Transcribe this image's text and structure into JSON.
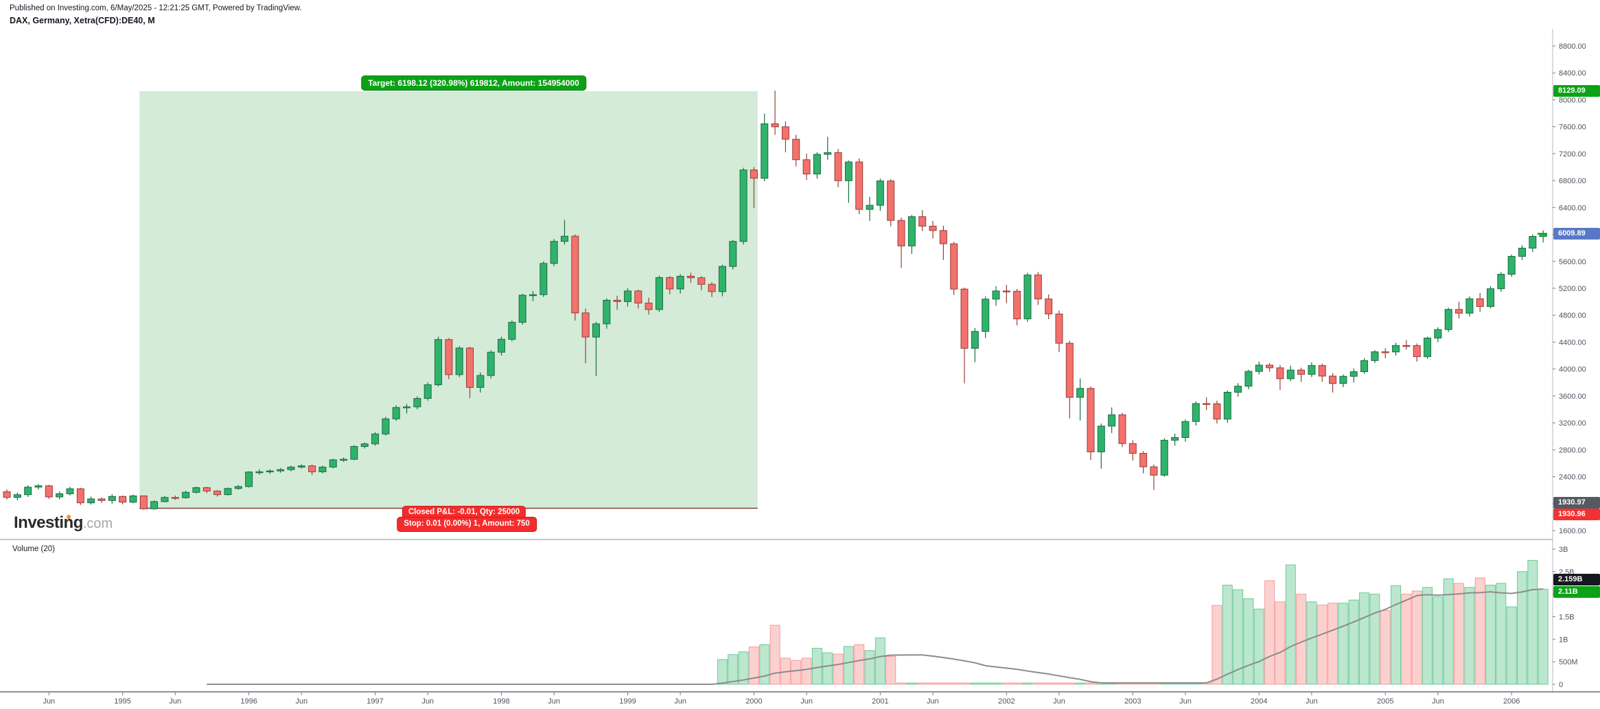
{
  "header": {
    "published_line": "Published on Investing.com, 6/May/2025 - 12:21:25 GMT, Powered by TradingView.",
    "symbol_line": "DAX, Germany, Xetra(CFD):DE40, M"
  },
  "position_tool": {
    "target_label": "Target: 6198.12 (320.98%) 619812, Amount: 154954000",
    "closed_pnl_label": "Closed P&L:  -0.01, Qty: 25000",
    "stop_label": "Stop: 0.01 (0.00%) 1, Amount: 750",
    "entry_price": 1930.97,
    "stop_price": 1930.96,
    "target_price": 8129.09,
    "range_start_index": 13,
    "range_end_index": 72
  },
  "price_axis": {
    "ticks": [
      "8800.00",
      "8400.00",
      "8000.00",
      "7600.00",
      "7200.00",
      "6800.00",
      "6400.00",
      "6000.00",
      "5600.00",
      "5200.00",
      "4800.00",
      "4400.00",
      "4000.00",
      "3600.00",
      "3200.00",
      "2800.00",
      "2400.00",
      "2000.00",
      "1600.00"
    ],
    "badges": [
      {
        "id": "target-price-badge",
        "text": "8129.09",
        "price": 8129.09,
        "bg": "#0ca216"
      },
      {
        "id": "last-price-badge",
        "text": "6009.89",
        "price": 6009.89,
        "bg": "#5878c7"
      },
      {
        "id": "entry-price-badge",
        "text": "1930.97",
        "price": 1930.97,
        "bg": "#555a62"
      },
      {
        "id": "stop-price-badge",
        "text": "1930.96",
        "price": 1930.96,
        "bg": "#f23232"
      }
    ]
  },
  "volume_axis": {
    "ticks": [
      [
        "3B",
        3
      ],
      [
        "2.5B",
        2.5
      ],
      [
        "2B",
        2
      ],
      [
        "1.5B",
        1.5
      ],
      [
        "1B",
        1
      ],
      [
        "500M",
        0.5
      ],
      [
        "0",
        0
      ]
    ],
    "badges": [
      {
        "id": "volume-ma-badge",
        "text": "2.159B",
        "value": 2.159,
        "bg": "#16191f"
      },
      {
        "id": "volume-last-badge",
        "text": "2.11B",
        "value": 2.11,
        "bg": "#0ca216"
      }
    ]
  },
  "time_axis": {
    "labels": [
      {
        "t": "Jun",
        "i": 4
      },
      {
        "t": "1995",
        "i": 11
      },
      {
        "t": "Jun",
        "i": 16
      },
      {
        "t": "1996",
        "i": 23
      },
      {
        "t": "Jun",
        "i": 28
      },
      {
        "t": "1997",
        "i": 35
      },
      {
        "t": "Jun",
        "i": 40
      },
      {
        "t": "1998",
        "i": 47
      },
      {
        "t": "Jun",
        "i": 52
      },
      {
        "t": "1999",
        "i": 59
      },
      {
        "t": "Jun",
        "i": 64
      },
      {
        "t": "2000",
        "i": 71
      },
      {
        "t": "Jun",
        "i": 76
      },
      {
        "t": "2001",
        "i": 83
      },
      {
        "t": "Jun",
        "i": 88
      },
      {
        "t": "2002",
        "i": 95
      },
      {
        "t": "Jun",
        "i": 100
      },
      {
        "t": "2003",
        "i": 107
      },
      {
        "t": "Jun",
        "i": 112
      },
      {
        "t": "2004",
        "i": 119
      },
      {
        "t": "Jun",
        "i": 124
      },
      {
        "t": "2005",
        "i": 131
      },
      {
        "t": "Jun",
        "i": 136
      },
      {
        "t": "2006",
        "i": 143
      }
    ]
  },
  "volume_panel": {
    "indicator_label": "Volume (20)"
  },
  "watermark": {
    "brand": "Investing",
    "suffix": ".com"
  },
  "chart_data": {
    "type": "candlestick+volume",
    "symbol": "DAX Xetra(CFD):DE40",
    "timeframe": "Monthly",
    "start_month": "1994-02",
    "price_range": [
      1600,
      8800
    ],
    "volume_range_billions": [
      0,
      3
    ],
    "ma_period": 20,
    "first_open": 2177,
    "closes": [
      2092,
      2133,
      2245,
      2265,
      2100,
      2147,
      2221,
      2012,
      2070,
      2046,
      2107,
      2022,
      2115,
      1923,
      2030,
      2092,
      2088,
      2168,
      2237,
      2187,
      2134,
      2225,
      2254,
      2470,
      2473,
      2486,
      2505,
      2543,
      2561,
      2473,
      2543,
      2651,
      2659,
      2849,
      2888,
      3035,
      3260,
      3428,
      3438,
      3563,
      3766,
      4438,
      3917,
      4312,
      3727,
      3904,
      4250,
      4442,
      4694,
      5097,
      5105,
      5569,
      5897,
      5974,
      4834,
      4475,
      4671,
      5022,
      5002,
      5160,
      4980,
      4884,
      5359,
      5190,
      5379,
      5356,
      5259,
      5150,
      5525,
      5896,
      6958,
      6835,
      7644,
      7599,
      7414,
      7110,
      6898,
      7190,
      7216,
      6798,
      7077,
      6372,
      6433,
      6795,
      6208,
      5829,
      6264,
      6123,
      6058,
      5861,
      5188,
      4308,
      4559,
      5039,
      5160,
      5156,
      4745,
      5397,
      5041,
      4818,
      4383,
      3579,
      3712,
      2769,
      3152,
      3320,
      2892,
      2747,
      2547,
      2423,
      2942,
      2982,
      3220,
      3487,
      3484,
      3256,
      3655,
      3745,
      3965,
      4058,
      4018,
      3856,
      3985,
      3921,
      4052,
      3895,
      3785,
      3892,
      3960,
      4126,
      4256,
      4254,
      4350,
      4348,
      4184,
      4460,
      4586,
      4886,
      4830,
      5044,
      4929,
      5193,
      5408,
      5674,
      5796,
      5970,
      6009.89
    ],
    "highs": [
      2210,
      2165,
      2272,
      2290,
      2280,
      2180,
      2250,
      2235,
      2105,
      2090,
      2140,
      2120,
      2135,
      2120,
      2050,
      2115,
      2120,
      2190,
      2255,
      2250,
      2200,
      2240,
      2275,
      2480,
      2510,
      2510,
      2530,
      2565,
      2585,
      2580,
      2565,
      2670,
      2685,
      2870,
      2910,
      3060,
      3290,
      3460,
      3480,
      3595,
      3800,
      4480,
      4460,
      4340,
      4330,
      3950,
      4280,
      4480,
      4720,
      5120,
      5160,
      5600,
      5930,
      6217,
      6000,
      4900,
      4700,
      5050,
      5090,
      5200,
      5180,
      5060,
      5390,
      5380,
      5410,
      5430,
      5380,
      5290,
      5550,
      5920,
      6990,
      7000,
      7795,
      8136,
      7680,
      7480,
      7200,
      7220,
      7450,
      7270,
      7100,
      7130,
      6560,
      6830,
      6820,
      6250,
      6290,
      6360,
      6200,
      6130,
      5890,
      5210,
      4610,
      5080,
      5230,
      5250,
      5190,
      5430,
      5440,
      5110,
      4870,
      4420,
      3860,
      3740,
      3190,
      3430,
      3350,
      2940,
      2780,
      2580,
      2970,
      3040,
      3250,
      3520,
      3580,
      3530,
      3680,
      3790,
      3990,
      4110,
      4090,
      4060,
      4050,
      4020,
      4100,
      4080,
      3940,
      3920,
      4010,
      4160,
      4280,
      4310,
      4390,
      4430,
      4380,
      4480,
      4620,
      4910,
      5000,
      5080,
      5130,
      5230,
      5440,
      5700,
      5840,
      6000,
      6060
    ],
    "lows": [
      2060,
      2050,
      2100,
      2210,
      2070,
      2065,
      2120,
      1980,
      1985,
      2010,
      2000,
      1990,
      2005,
      1911,
      1910,
      2020,
      2055,
      2075,
      2150,
      2155,
      2105,
      2120,
      2205,
      2240,
      2430,
      2440,
      2460,
      2480,
      2520,
      2425,
      2450,
      2525,
      2620,
      2645,
      2820,
      2860,
      3010,
      3230,
      3340,
      3400,
      3530,
      3740,
      3850,
      3880,
      3567,
      3650,
      3860,
      4200,
      4410,
      4660,
      5010,
      5070,
      5530,
      5850,
      4720,
      4085,
      3896,
      4600,
      4880,
      4930,
      4900,
      4810,
      4850,
      5110,
      5120,
      5280,
      5170,
      5070,
      5080,
      5480,
      5850,
      6390,
      6790,
      7480,
      7220,
      7010,
      6810,
      6830,
      7110,
      6700,
      6470,
      6300,
      6200,
      6350,
      6120,
      5500,
      5710,
      6050,
      5940,
      5620,
      5100,
      3787,
      4100,
      4460,
      4940,
      4980,
      4650,
      4700,
      4950,
      4740,
      4250,
      3267,
      3235,
      2647,
      2519,
      3050,
      2840,
      2640,
      2450,
      2202,
      2400,
      2860,
      2920,
      3160,
      3390,
      3190,
      3200,
      3590,
      3700,
      3920,
      3960,
      3690,
      3820,
      3810,
      3880,
      3810,
      3650,
      3730,
      3800,
      3930,
      4090,
      4160,
      4200,
      4290,
      4110,
      4150,
      4400,
      4550,
      4750,
      4780,
      4850,
      4900,
      5150,
      5370,
      5620,
      5740,
      5880
    ],
    "volumes_billions": [
      0,
      0,
      0,
      0,
      0,
      0,
      0,
      0,
      0,
      0,
      0,
      0,
      0,
      0,
      0,
      0,
      0,
      0,
      0,
      0,
      0,
      0,
      0,
      0,
      0,
      0,
      0,
      0,
      0,
      0,
      0,
      0,
      0,
      0,
      0,
      0,
      0,
      0,
      0,
      0,
      0,
      0,
      0,
      0,
      0,
      0,
      0,
      0,
      0,
      0,
      0,
      0,
      0,
      0,
      0,
      0,
      0,
      0,
      0,
      0,
      0,
      0,
      0,
      0,
      0,
      0,
      0,
      0,
      0.55,
      0.66,
      0.72,
      0.83,
      0.88,
      1.31,
      0.58,
      0.53,
      0.58,
      0.8,
      0.7,
      0.67,
      0.84,
      0.88,
      0.75,
      1.03,
      0.62,
      0.03,
      0.03,
      0.03,
      0.03,
      0.03,
      0.03,
      0.03,
      0.03,
      0.03,
      0.03,
      0.03,
      0.03,
      0.03,
      0.03,
      0.03,
      0.03,
      0.03,
      0.03,
      0.03,
      0.03,
      0.03,
      0.03,
      0.03,
      0.03,
      0.03,
      0.03,
      0.03,
      0.03,
      0.03,
      0.03,
      1.75,
      2.2,
      2.1,
      1.9,
      1.67,
      2.3,
      1.83,
      2.65,
      2.0,
      1.83,
      1.76,
      1.8,
      1.8,
      1.87,
      2.03,
      2.0,
      1.64,
      2.19,
      2.0,
      2.07,
      2.15,
      1.94,
      2.34,
      2.24,
      2.15,
      2.36,
      2.2,
      2.24,
      1.72,
      2.5,
      2.75,
      2.11
    ],
    "colors": {
      "up_fill": "#2fb36b",
      "up_stroke": "#1a6b44",
      "down_fill": "#f4716d",
      "down_stroke": "#933f37",
      "vol_up_fill": "rgba(47,179,107,0.32)",
      "vol_up_stroke": "rgba(47,179,107,0.65)",
      "vol_down_fill": "rgba(244,113,109,0.32)",
      "vol_down_stroke": "rgba(244,113,109,0.65)",
      "ma_line": "#8b8b8b",
      "box_fill": "rgba(60,166,75,0.22)",
      "entry_line": "#7e3f39",
      "last_price_marker": "#0ca216",
      "axis_text": "#50535e"
    }
  }
}
